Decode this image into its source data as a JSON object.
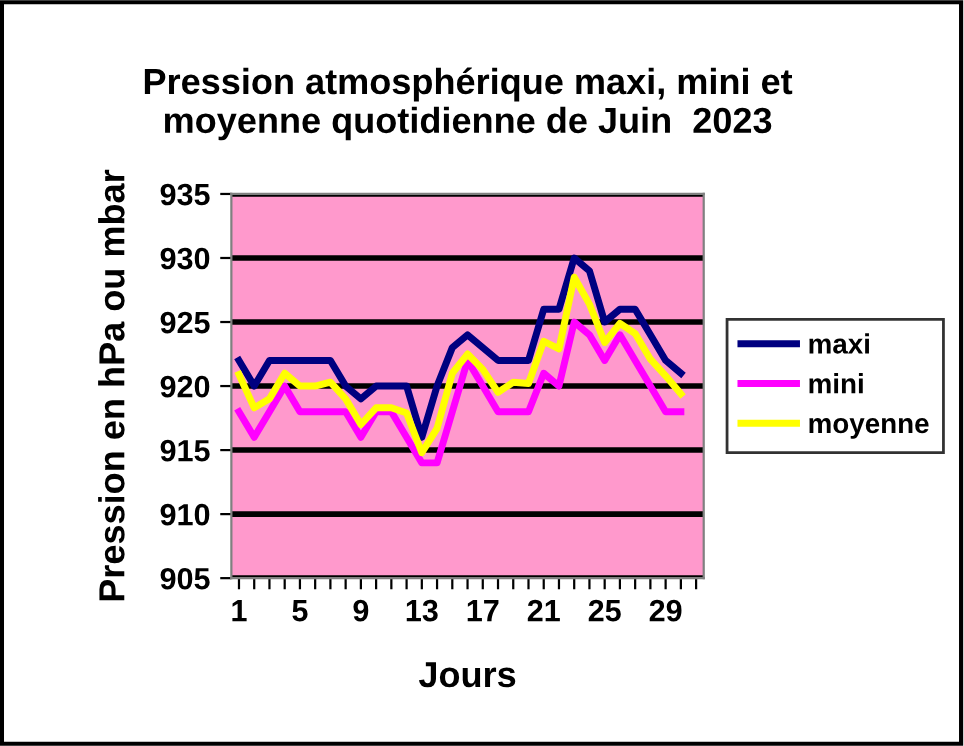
{
  "chart_data": {
    "type": "line",
    "title": "Pression atmosphérique maxi, mini et\nmoyenne quotidienne de Juin  2023",
    "xlabel": "Jours",
    "ylabel": "Pression en hPa ou mbar",
    "x": [
      1,
      2,
      3,
      4,
      5,
      6,
      7,
      8,
      9,
      10,
      11,
      12,
      13,
      14,
      15,
      16,
      17,
      18,
      19,
      20,
      21,
      22,
      23,
      24,
      25,
      26,
      27,
      28,
      29,
      30
    ],
    "series": [
      {
        "name": "maxi",
        "color": "#000080",
        "values": [
          922,
          920,
          922,
          922,
          922,
          922,
          922,
          920,
          919,
          920,
          920,
          920,
          916,
          920,
          923,
          924,
          923,
          922,
          922,
          922,
          926,
          926,
          930,
          929,
          925,
          926,
          926,
          924,
          922,
          921
        ]
      },
      {
        "name": "mini",
        "color": "#ff00ff",
        "values": [
          918,
          916,
          918,
          920,
          918,
          918,
          918,
          918,
          916,
          918,
          918,
          916,
          914,
          914,
          918,
          922,
          920,
          918,
          918,
          918,
          921,
          920,
          925,
          924,
          922,
          924,
          922,
          920,
          918,
          918
        ]
      },
      {
        "name": "moyenne",
        "color": "#ffff00",
        "values": [
          920.9,
          918.3,
          919,
          921,
          920,
          920,
          920.3,
          919,
          917,
          918.3,
          918.3,
          917.9,
          914.8,
          916.7,
          921,
          922.5,
          921.3,
          919.5,
          920.3,
          920.2,
          923.5,
          922.9,
          928.5,
          926.4,
          923.4,
          924.9,
          924.1,
          922.1,
          920.8,
          919.4
        ]
      }
    ],
    "xlim": [
      0.5,
      31.5
    ],
    "xticks": [
      1,
      {
        "value": 2,
        "label": null
      },
      {
        "value": 3,
        "label": null
      },
      {
        "value": 4,
        "label": null
      },
      5,
      {
        "value": 6,
        "label": null
      },
      {
        "value": 7,
        "label": null
      },
      {
        "value": 8,
        "label": null
      },
      9,
      {
        "value": 10,
        "label": null
      },
      {
        "value": 11,
        "label": null
      },
      {
        "value": 12,
        "label": null
      },
      13,
      {
        "value": 14,
        "label": null
      },
      {
        "value": 15,
        "label": null
      },
      {
        "value": 16,
        "label": null
      },
      17,
      {
        "value": 18,
        "label": null
      },
      {
        "value": 19,
        "label": null
      },
      {
        "value": 20,
        "label": null
      },
      21,
      {
        "value": 22,
        "label": null
      },
      {
        "value": 23,
        "label": null
      },
      {
        "value": 24,
        "label": null
      },
      25,
      {
        "value": 26,
        "label": null
      },
      {
        "value": 27,
        "label": null
      },
      {
        "value": 28,
        "label": null
      },
      29,
      {
        "value": 30,
        "label": null
      },
      {
        "value": 31,
        "label": null
      }
    ],
    "ylim": [
      905,
      935
    ],
    "yticks": [
      905,
      910,
      915,
      920,
      925,
      930,
      935
    ],
    "grid": "y",
    "legend": "right",
    "marker": "none",
    "line_style": "solid"
  }
}
